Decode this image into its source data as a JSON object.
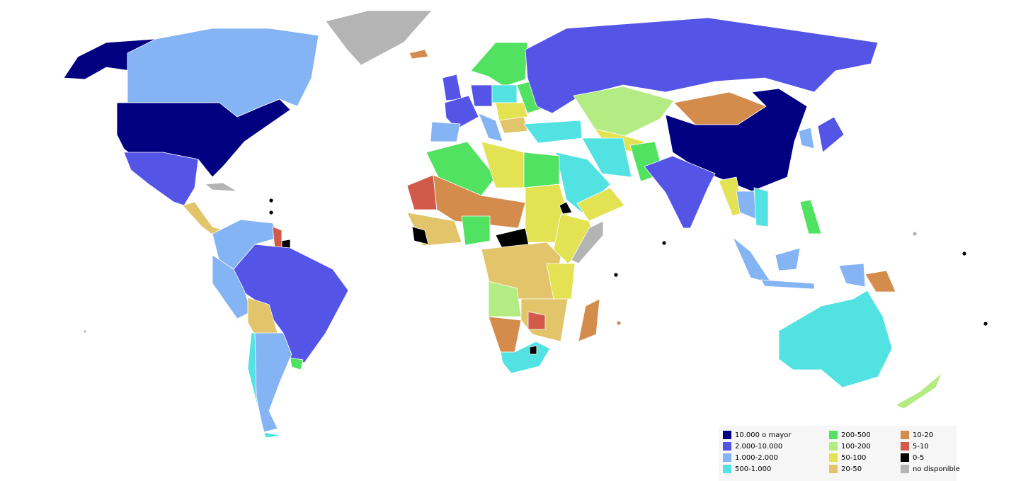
{
  "legend": {
    "items": [
      {
        "label": "10.000 o mayor",
        "color": "#000080"
      },
      {
        "label": "2.000-10.000",
        "color": "#5454e6"
      },
      {
        "label": "1.000-2.000",
        "color": "#84b4f4"
      },
      {
        "label": "500-1.000",
        "color": "#52e2e2"
      },
      {
        "label": "200-500",
        "color": "#52e262"
      },
      {
        "label": "100-200",
        "color": "#b4ec84"
      },
      {
        "label": "50-100",
        "color": "#e2e252"
      },
      {
        "label": "20-50",
        "color": "#e2c46a"
      },
      {
        "label": "10-20",
        "color": "#d48c4c"
      },
      {
        "label": "5-10",
        "color": "#d25a4a"
      },
      {
        "label": "0-5",
        "color": "#000000"
      },
      {
        "label": "no disponible",
        "color": "#b4b4b4"
      }
    ]
  }
}
